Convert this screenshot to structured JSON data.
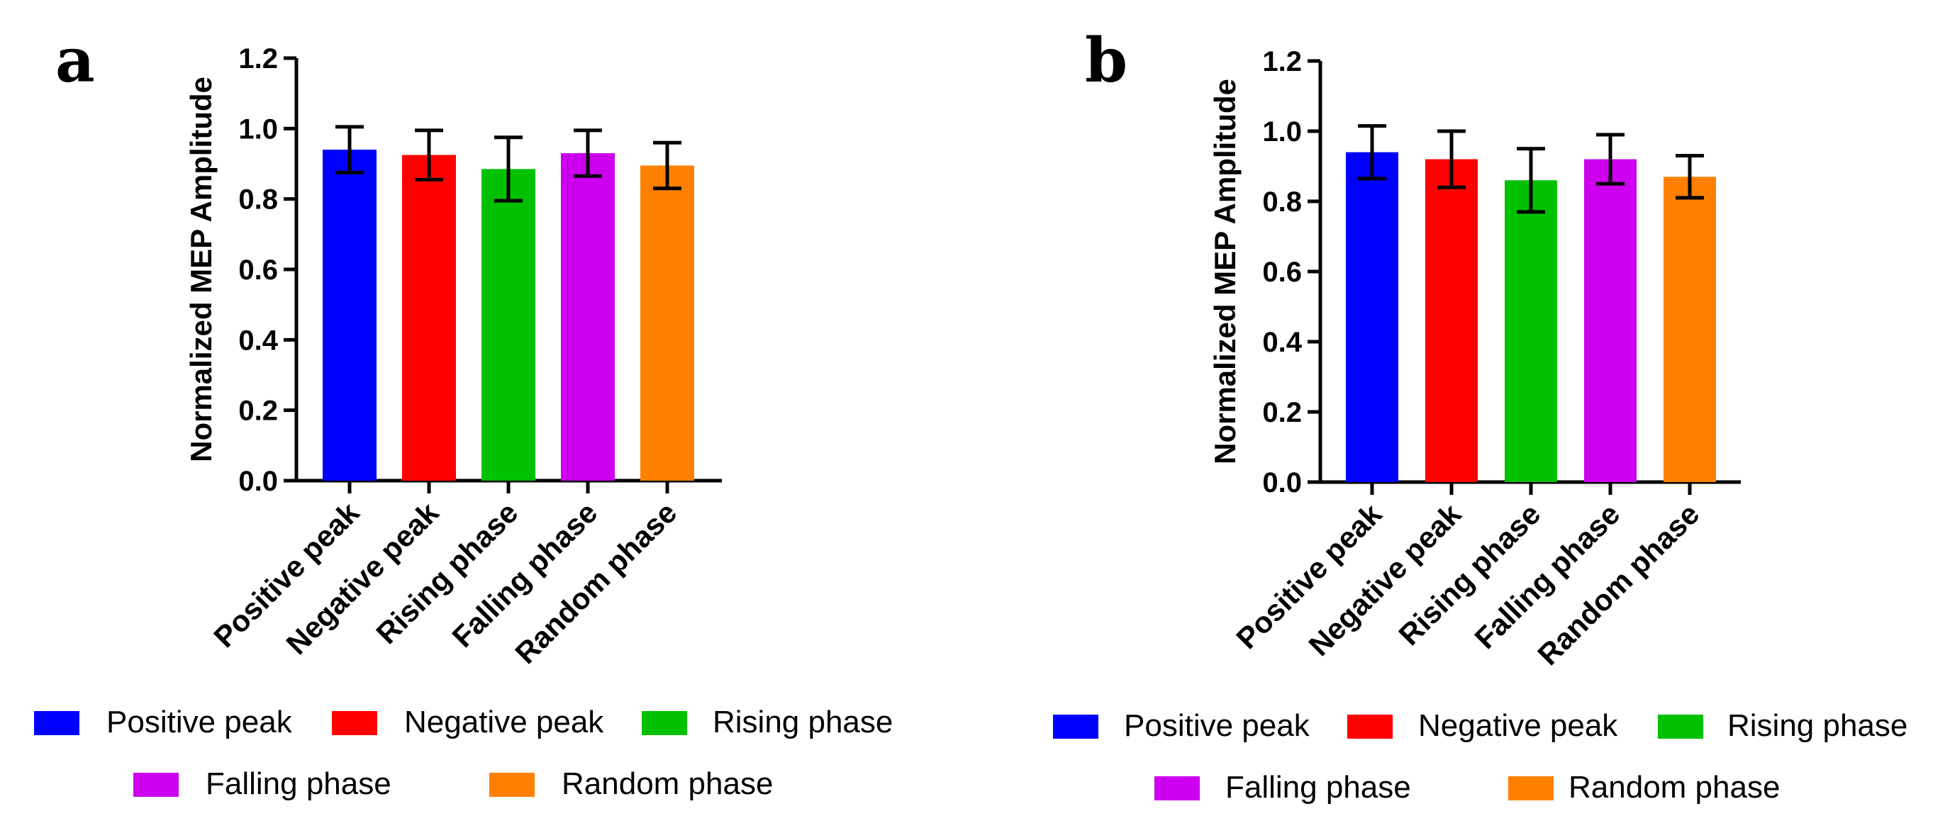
{
  "chart_data": [
    {
      "type": "bar",
      "panel": "a",
      "ylabel": "Normalized MEP Amplitude",
      "xlabel": "",
      "ylim": [
        0,
        1.2
      ],
      "yticks": [
        "0.0",
        "0.2",
        "0.4",
        "0.6",
        "0.8",
        "1.0",
        "1.2"
      ],
      "categories": [
        "Positive peak",
        "Negative peak",
        "Rising phase",
        "Falling phase",
        "Random phase"
      ],
      "values": [
        0.94,
        0.925,
        0.885,
        0.93,
        0.895
      ],
      "errors": [
        0.065,
        0.07,
        0.09,
        0.065,
        0.065
      ],
      "colors": [
        "#0000ff",
        "#ff0000",
        "#00c000",
        "#cc00ee",
        "#ff8000"
      ],
      "legend": [
        "Positive peak",
        "Negative peak",
        "Rising phase",
        "Falling phase",
        "Random phase"
      ]
    },
    {
      "type": "bar",
      "panel": "b",
      "ylabel": "Normalized MEP Amplitude",
      "xlabel": "",
      "ylim": [
        0,
        1.2
      ],
      "yticks": [
        "0.0",
        "0.2",
        "0.4",
        "0.6",
        "0.8",
        "1.0",
        "1.2"
      ],
      "categories": [
        "Positive peak",
        "Negative peak",
        "Rising phase",
        "Falling phase",
        "Random phase"
      ],
      "values": [
        0.94,
        0.92,
        0.86,
        0.92,
        0.87
      ],
      "errors": [
        0.075,
        0.08,
        0.09,
        0.07,
        0.06
      ],
      "colors": [
        "#0000ff",
        "#ff0000",
        "#00c000",
        "#cc00ee",
        "#ff8000"
      ],
      "legend": [
        "Positive peak",
        "Negative peak",
        "Rising phase",
        "Falling phase",
        "Random phase"
      ]
    }
  ]
}
